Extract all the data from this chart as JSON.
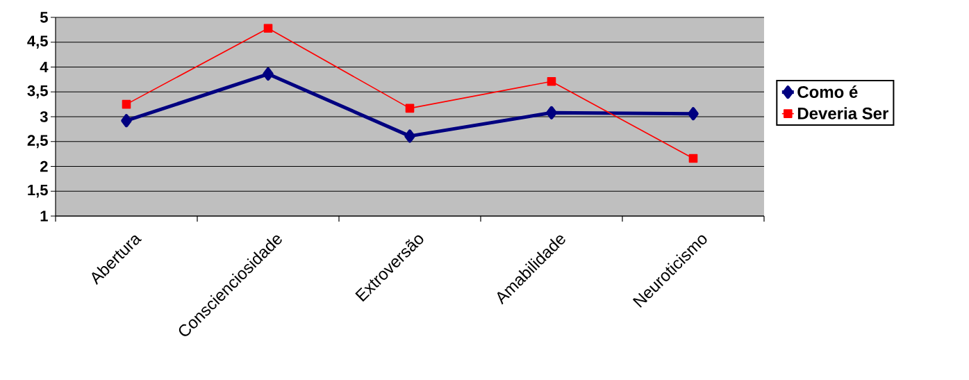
{
  "chart_data": {
    "type": "line",
    "categories": [
      "Abertura",
      "Conscienciosidade",
      "Extroversão",
      "Amabilidade",
      "Neuroticismo"
    ],
    "series": [
      {
        "name": "Como é",
        "color": "#000080",
        "marker": "diamond",
        "values": [
          2.92,
          3.86,
          2.61,
          3.08,
          3.06
        ]
      },
      {
        "name": "Deveria Ser",
        "color": "#ff0000",
        "marker": "square",
        "values": [
          3.25,
          4.78,
          3.17,
          3.71,
          2.16
        ]
      }
    ],
    "ylim": [
      1,
      5
    ],
    "yticks": [
      1,
      {
        "value": 1.5,
        "label": "1,5"
      },
      2,
      {
        "value": 2.5,
        "label": "2,5"
      },
      3,
      {
        "value": 3.5,
        "label": "3,5"
      },
      4,
      {
        "value": 4.5,
        "label": "4,5"
      },
      5
    ],
    "grid": "y",
    "legend": "right",
    "line_style": "solid"
  }
}
